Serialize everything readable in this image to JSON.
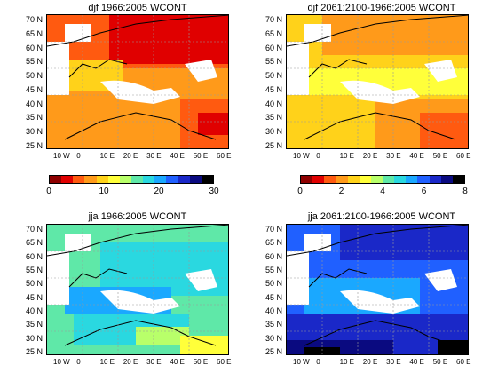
{
  "panels": [
    {
      "title": "djf 1966:2005 WCONT",
      "palette": [
        "#8e0000",
        "#e00000",
        "#ff5a10",
        "#ff9a1a",
        "#ffd21a",
        "#ffff3a",
        "#b8ff6a",
        "#5fe8a8",
        "#2ad8e0",
        "#1aa8ff",
        "#2060ff",
        "#1a28c8",
        "#0a0a80",
        "#000000"
      ],
      "colorbar_ticks": [
        "0",
        "10",
        "20",
        "30"
      ]
    },
    {
      "title": "djf 2061:2100-1966:2005 WCONT",
      "palette": [
        "#8e0000",
        "#e00000",
        "#ff5a10",
        "#ff9a1a",
        "#ffd21a",
        "#ffff3a",
        "#b8ff6a",
        "#5fe8a8",
        "#2ad8e0",
        "#1aa8ff",
        "#2060ff",
        "#1a28c8",
        "#0a0a80",
        "#000000"
      ],
      "colorbar_ticks": [
        "0",
        "2",
        "4",
        "6",
        "8"
      ]
    },
    {
      "title": "jja 1966:2005 WCONT"
    },
    {
      "title": "jja 2061:2100-1966:2005 WCONT"
    }
  ],
  "lat_labels": [
    "70 N",
    "65 N",
    "60 N",
    "55 N",
    "50 N",
    "45 N",
    "40 N",
    "35 N",
    "30 N",
    "25 N"
  ],
  "lon_labels": [
    "10 W",
    "0",
    "10 E",
    "20 E",
    "30 E",
    "40 E",
    "50 E",
    "60 E"
  ],
  "colors": {
    "land_outline": "#000000",
    "water": "#ffffff",
    "grid": "#999999"
  }
}
